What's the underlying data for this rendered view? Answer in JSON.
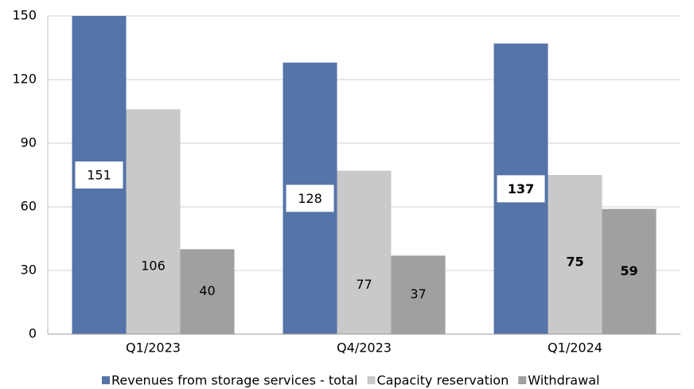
{
  "chart_data": {
    "type": "bar",
    "categories": [
      "Q1/2023",
      "Q4/2023",
      "Q1/2024"
    ],
    "series": [
      {
        "name": "Revenues from storage services - total",
        "color": "#5574a8",
        "values": [
          151,
          128,
          137
        ]
      },
      {
        "name": "Capacity reservation",
        "color": "#c9c9c9",
        "values": [
          106,
          77,
          75
        ]
      },
      {
        "name": "Withdrawal",
        "color": "#a0a0a0",
        "values": [
          40,
          37,
          59
        ]
      }
    ],
    "ylim": [
      0,
      150
    ],
    "yticks": [
      0,
      30,
      60,
      90,
      120,
      150
    ],
    "grid": true,
    "legend": "bottom"
  }
}
